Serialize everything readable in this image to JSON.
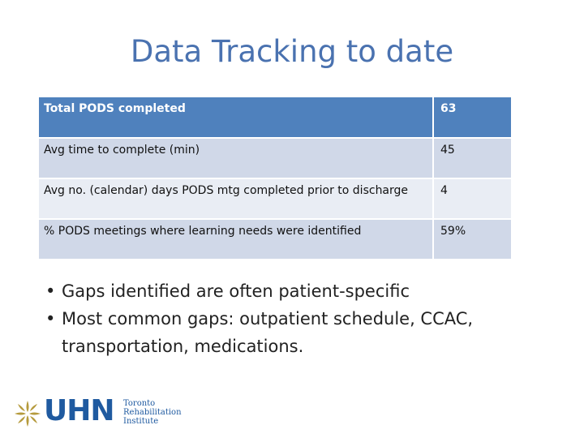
{
  "slide": {
    "title": "Data Tracking to date"
  },
  "table": {
    "rows": [
      {
        "label": "Total PODS completed",
        "value": "63"
      },
      {
        "label": "Avg time to complete (min)",
        "value": "45"
      },
      {
        "label": "Avg no. (calendar) days PODS mtg completed prior to discharge",
        "value": "4"
      },
      {
        "label": "% PODS meetings where learning needs were identified",
        "value": "59%"
      }
    ]
  },
  "bullets": [
    "Gaps identified are often patient-specific",
    "Most common gaps: outpatient schedule, CCAC, transportation, medications."
  ],
  "logo": {
    "name": "UHN",
    "sub_line1": "Toronto",
    "sub_line2": "Rehabilitation",
    "sub_line3": "Institute"
  },
  "colors": {
    "title": "#4a72b0",
    "table_header": "#4f81bd",
    "table_row": "#d0d8e8",
    "table_row_alt": "#e9edf4",
    "logo": "#1f5aa0"
  }
}
